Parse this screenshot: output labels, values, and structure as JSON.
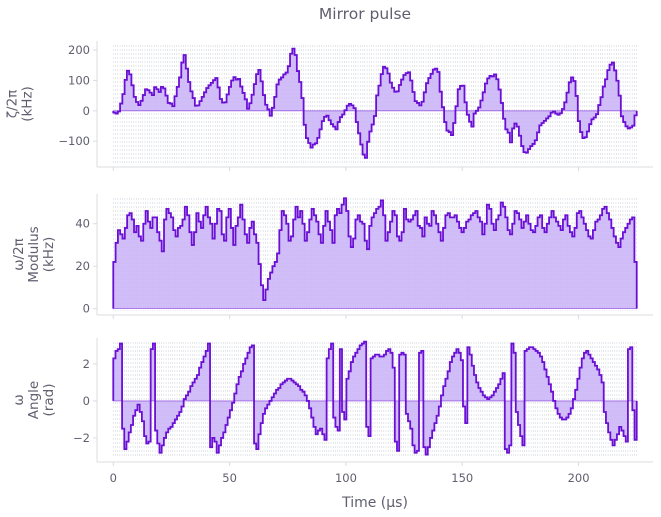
{
  "chart_data": {
    "type": "line",
    "title": "Mirror pulse",
    "xlabel": "Time (µs)",
    "xlim": [
      -7,
      232
    ],
    "x_ticks": [
      0,
      50,
      100,
      150,
      200
    ],
    "x_tick_labels": [
      "0",
      "50",
      "100",
      "150",
      "200"
    ],
    "style": {
      "line_color": "#6a0fd4",
      "fill_color": "#c9b2f7",
      "grid_color": "#c6cdd6",
      "axis_color": "#d8dce2",
      "text_color": "#5f5f6f"
    },
    "panels": [
      {
        "ylabel_lines": [
          "ζ/2π",
          "(kHz)"
        ],
        "ylim": [
          -185,
          230
        ],
        "y_ticks": [
          -100,
          0,
          100,
          200
        ],
        "y_tick_labels": [
          "−100",
          "0",
          "100",
          "200"
        ],
        "t_end": 225,
        "values": [
          -6,
          -9,
          -2,
          24,
          55,
          102,
          132,
          120,
          84,
          46,
          29,
          19,
          33,
          52,
          71,
          68,
          60,
          52,
          78,
          71,
          62,
          79,
          74,
          50,
          26,
          24,
          15,
          48,
          79,
          110,
          159,
          184,
          139,
          95,
          64,
          42,
          17,
          18,
          32,
          46,
          61,
          75,
          84,
          92,
          101,
          108,
          77,
          39,
          27,
          28,
          54,
          79,
          100,
          111,
          103,
          105,
          80,
          59,
          38,
          7,
          25,
          53,
          88,
          121,
          135,
          97,
          52,
          20,
          5,
          -16,
          10,
          46,
          87,
          103,
          110,
          120,
          126,
          147,
          188,
          205,
          184,
          131,
          95,
          42,
          -46,
          -90,
          -106,
          -121,
          -111,
          -107,
          -89,
          -61,
          -34,
          -20,
          -16,
          -31,
          -44,
          -52,
          -61,
          -37,
          -21,
          -12,
          2,
          17,
          23,
          18,
          9,
          -37,
          -74,
          -111,
          -144,
          -155,
          -102,
          -68,
          -45,
          -17,
          51,
          83,
          121,
          145,
          140,
          123,
          93,
          76,
          63,
          64,
          85,
          103,
          118,
          124,
          127,
          100,
          62,
          32,
          26,
          18,
          30,
          61,
          91,
          108,
          122,
          136,
          139,
          128,
          63,
          12,
          -37,
          -65,
          -70,
          -80,
          -40,
          15,
          71,
          82,
          83,
          28,
          -13,
          -36,
          -52,
          -9,
          0,
          11,
          34,
          61,
          90,
          107,
          115,
          113,
          120,
          104,
          70,
          26,
          -26,
          -61,
          -72,
          -104,
          -58,
          -42,
          -52,
          -82,
          -116,
          -136,
          -138,
          -126,
          -116,
          -109,
          -97,
          -71,
          -48,
          -40,
          -33,
          -25,
          -18,
          -6,
          -2,
          -9,
          -13,
          -8,
          6,
          28,
          60,
          94,
          110,
          98,
          49,
          -34,
          -70,
          -90,
          -87,
          -68,
          -44,
          -28,
          -22,
          -11,
          19,
          45,
          80,
          104,
          134,
          152,
          159,
          133,
          99,
          50,
          -18,
          -37,
          -51,
          -58,
          -55,
          -49,
          -15
        ]
      },
      {
        "ylabel_lines": [
          "ω/2π",
          "Modulus",
          "(kHz)"
        ],
        "ylim": [
          -3,
          54
        ],
        "y_ticks": [
          0,
          20,
          40
        ],
        "y_tick_labels": [
          "0",
          "20",
          "40"
        ],
        "t_end": 225,
        "values": [
          22,
          31,
          37,
          35,
          33,
          38,
          44,
          45,
          42,
          36,
          39,
          34,
          32,
          40,
          46,
          41,
          38,
          43,
          43,
          36,
          32,
          27,
          42,
          47,
          45,
          43,
          37,
          34,
          38,
          39,
          42,
          48,
          44,
          36,
          30,
          36,
          45,
          41,
          38,
          44,
          48,
          43,
          40,
          33,
          40,
          47,
          46,
          35,
          32,
          43,
          47,
          38,
          30,
          39,
          43,
          49,
          42,
          35,
          31,
          38,
          41,
          35,
          31,
          21,
          11,
          4,
          9,
          14,
          17,
          20,
          22,
          26,
          37,
          46,
          44,
          40,
          32,
          34,
          42,
          48,
          43,
          46,
          40,
          32,
          36,
          42,
          47,
          44,
          41,
          35,
          31,
          39,
          46,
          41,
          37,
          31,
          44,
          47,
          45,
          49,
          52,
          46,
          34,
          29,
          33,
          42,
          44,
          41,
          40,
          32,
          28,
          39,
          43,
          45,
          47,
          48,
          51,
          44,
          32,
          36,
          41,
          46,
          44,
          34,
          32,
          36,
          47,
          42,
          41,
          42,
          44,
          46,
          39,
          38,
          34,
          43,
          40,
          39,
          46,
          44,
          40,
          36,
          32,
          38,
          44,
          45,
          43,
          43,
          44,
          41,
          38,
          36,
          38,
          41,
          42,
          44,
          45,
          46,
          43,
          41,
          35,
          40,
          49,
          47,
          40,
          37,
          42,
          44,
          50,
          48,
          43,
          37,
          35,
          40,
          46,
          45,
          42,
          38,
          41,
          44,
          40,
          37,
          36,
          39,
          43,
          44,
          38,
          36,
          40,
          43,
          46,
          43,
          41,
          39,
          37,
          42,
          44,
          39,
          36,
          34,
          38,
          45,
          46,
          43,
          40,
          37,
          34,
          33,
          37,
          41,
          42,
          44,
          47,
          48,
          45,
          42,
          38,
          34,
          31,
          29,
          33,
          36,
          38,
          40,
          42,
          43,
          22
        ]
      },
      {
        "ylabel_lines": [
          "ω",
          "Angle",
          "(rad)"
        ],
        "ylim": [
          -3.3,
          3.4
        ],
        "y_ticks": [
          -2,
          0,
          2
        ],
        "y_tick_labels": [
          "−2",
          "0",
          "2"
        ],
        "t_end": 225,
        "values": [
          2.3,
          2.7,
          2.8,
          3.1,
          -1.5,
          -2.6,
          -2.2,
          -1.7,
          -1.3,
          -0.8,
          -0.5,
          -0.2,
          -0.6,
          -1.1,
          -1.9,
          -2.3,
          -2.2,
          2.8,
          3.1,
          -1.6,
          -2.3,
          -2.8,
          -2.4,
          -2.0,
          -1.7,
          -1.5,
          -1.4,
          -1.2,
          -1.0,
          -0.8,
          -0.6,
          -0.3,
          0.1,
          0.3,
          0.5,
          0.8,
          1.0,
          1.2,
          1.4,
          1.8,
          2.1,
          2.4,
          2.7,
          3.1,
          -2.5,
          -2.0,
          -2.2,
          -2.8,
          -2.4,
          -2.0,
          -1.7,
          -1.3,
          -0.9,
          -0.5,
          -0.1,
          0.4,
          0.9,
          1.3,
          1.6,
          2.0,
          2.3,
          2.6,
          2.9,
          3.0,
          -2.3,
          -2.6,
          -1.8,
          -1.2,
          -0.7,
          -0.4,
          -0.2,
          0.0,
          0.2,
          0.4,
          0.6,
          0.7,
          0.9,
          1.0,
          1.1,
          1.2,
          1.2,
          1.1,
          1.0,
          0.9,
          0.8,
          0.6,
          0.5,
          0.3,
          0.0,
          -0.4,
          -0.9,
          -1.4,
          -1.8,
          -1.6,
          -1.5,
          -1.8,
          -2.1,
          2.3,
          2.8,
          3.1,
          -0.9,
          -1.4,
          -1.6,
          2.8,
          -0.6,
          -1.0,
          1.2,
          1.6,
          2.1,
          2.4,
          2.6,
          2.8,
          3.0,
          3.1,
          3.2,
          -1.4,
          -1.9,
          2.3,
          2.4,
          2.5,
          2.5,
          2.4,
          2.4,
          2.5,
          2.7,
          2.8,
          2.6,
          1.8,
          -2.2,
          -2.7,
          2.5,
          2.6,
          2.5,
          -0.7,
          -1.1,
          -1.5,
          -2.4,
          -2.8,
          -2.7,
          2.6,
          2.7,
          -2.5,
          -2.9,
          -2.5,
          -2.0,
          -1.6,
          -1.2,
          -0.8,
          -0.3,
          0.3,
          0.8,
          1.2,
          1.6,
          2.1,
          2.4,
          2.6,
          2.8,
          2.6,
          2.2,
          -0.3,
          -1.2,
          2.9,
          2.5,
          1.9,
          1.4,
          1.0,
          0.7,
          0.5,
          0.3,
          0.2,
          0.1,
          0.2,
          0.3,
          0.5,
          0.7,
          0.9,
          1.2,
          1.5,
          -2.6,
          -2.8,
          -2.4,
          3.1,
          2.6,
          -0.6,
          -1.3,
          -1.9,
          -2.4,
          2.7,
          2.8,
          2.9,
          2.9,
          2.8,
          2.7,
          2.6,
          2.4,
          2.1,
          1.7,
          1.3,
          0.9,
          0.5,
          0.0,
          -0.4,
          -0.7,
          -0.9,
          -1.0,
          -1.0,
          -0.9,
          -0.7,
          -0.4,
          0.1,
          0.6,
          1.2,
          1.8,
          2.3,
          2.6,
          2.7,
          2.5,
          2.3,
          2.1,
          1.9,
          1.7,
          1.4,
          1.0,
          -0.6,
          -1.2,
          -1.7,
          -2.1,
          -2.4,
          -2.1,
          -1.8,
          -1.4,
          -1.6,
          -1.9,
          -2.2,
          2.8,
          2.9,
          -0.5,
          -2.1
        ]
      }
    ]
  }
}
